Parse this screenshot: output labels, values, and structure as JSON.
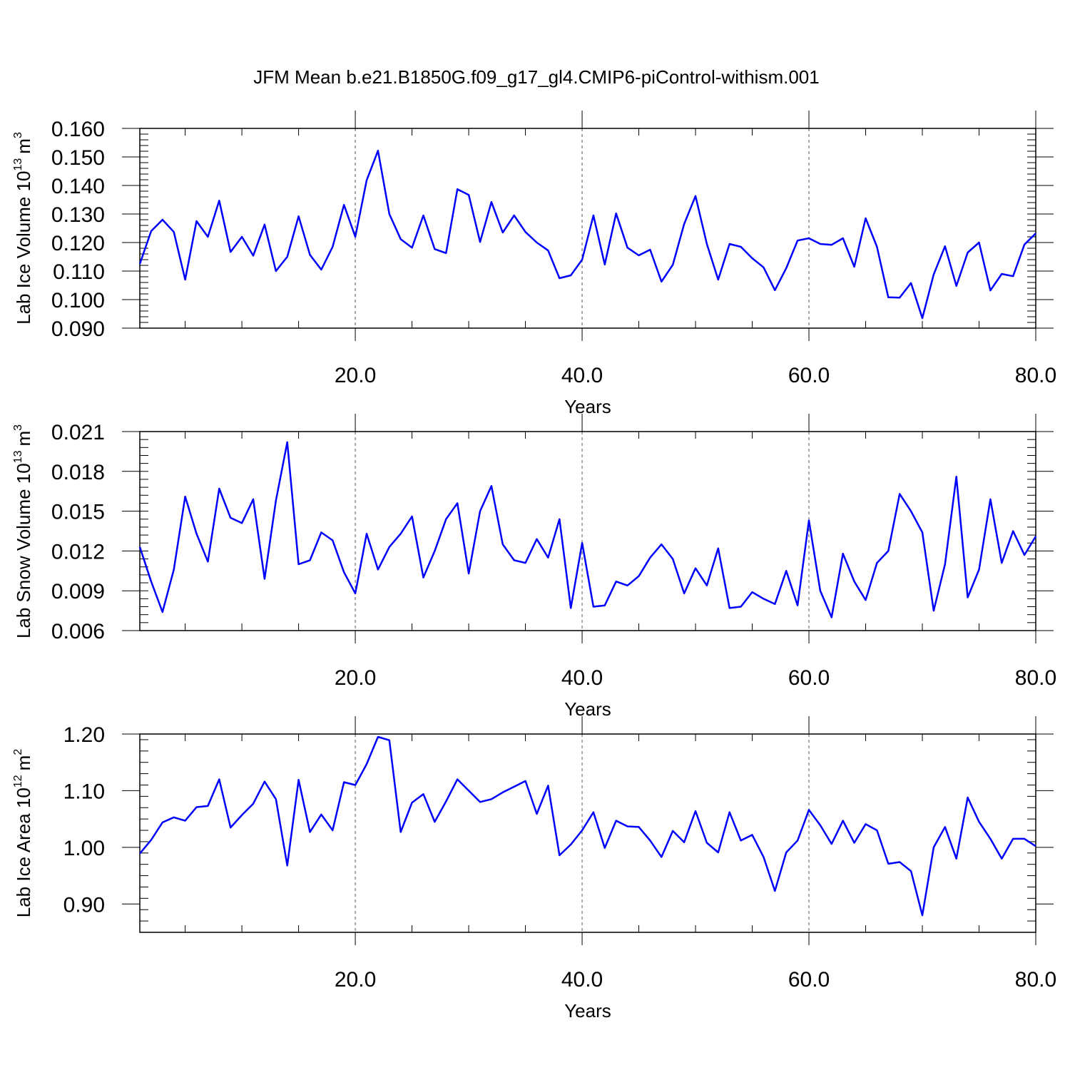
{
  "title": "JFM Mean b.e21.B1850G.f09_g17_gl4.CMIP6-piControl-withism.001",
  "colors": {
    "line": "#0000ff",
    "axes": "#000000",
    "grid": "#555555"
  },
  "chart_data": [
    {
      "type": "line",
      "xlabel": "Years",
      "ylabel_main": "Lab Ice Volume 10",
      "ylabel_exp": "13",
      "ylabel_unit": "m",
      "ylabel_unit_exp": "3",
      "xlim": [
        1,
        80
      ],
      "ylim": [
        0.09,
        0.16
      ],
      "yticks": [
        "0.160",
        "0.150",
        "0.140",
        "0.130",
        "0.120",
        "0.110",
        "0.100",
        "0.090"
      ],
      "ytick_values": [
        0.16,
        0.15,
        0.14,
        0.13,
        0.12,
        0.11,
        0.1,
        0.09
      ],
      "xticks": [
        "20.0",
        "40.0",
        "60.0",
        "80.0"
      ],
      "xtick_values": [
        20,
        40,
        60,
        80
      ],
      "grid": "vertical dashed at major x ticks",
      "series": [
        {
          "values": [
            0.1125,
            0.124,
            0.128,
            0.1237,
            0.107,
            0.1275,
            0.122,
            0.1347,
            0.1167,
            0.122,
            0.1154,
            0.1263,
            0.11,
            0.115,
            0.1292,
            0.1157,
            0.1105,
            0.1185,
            0.1332,
            0.122,
            0.1418,
            0.1522,
            0.13,
            0.1212,
            0.1182,
            0.1295,
            0.1177,
            0.1163,
            0.1387,
            0.1367,
            0.1202,
            0.1342,
            0.1235,
            0.1295,
            0.1237,
            0.12,
            0.1172,
            0.1075,
            0.1085,
            0.114,
            0.1295,
            0.1123,
            0.1302,
            0.1182,
            0.1155,
            0.1175,
            0.1063,
            0.1122,
            0.1265,
            0.1363,
            0.1195,
            0.107,
            0.1195,
            0.1185,
            0.1145,
            0.1113,
            0.1033,
            0.111,
            0.1207,
            0.1215,
            0.1195,
            0.1192,
            0.1215,
            0.1115,
            0.1285,
            0.1185,
            0.1008,
            0.1007,
            0.1058,
            0.0935,
            0.1088,
            0.1187,
            0.1048,
            0.1165,
            0.12,
            0.1032,
            0.109,
            0.1082,
            0.1193,
            0.1232
          ]
        }
      ]
    },
    {
      "type": "line",
      "xlabel": "Years",
      "ylabel_main": "Lab Snow Volume 10",
      "ylabel_exp": "13",
      "ylabel_unit": "m",
      "ylabel_unit_exp": "3",
      "xlim": [
        1,
        80
      ],
      "ylim": [
        0.006,
        0.021
      ],
      "yticks": [
        "0.021",
        "0.018",
        "0.015",
        "0.012",
        "0.009",
        "0.006"
      ],
      "ytick_values": [
        0.021,
        0.018,
        0.015,
        0.012,
        0.009,
        0.006
      ],
      "xticks": [
        "20.0",
        "40.0",
        "60.0",
        "80.0"
      ],
      "xtick_values": [
        20,
        40,
        60,
        80
      ],
      "grid": "vertical dashed at major x ticks",
      "series": [
        {
          "values": [
            0.0123,
            0.0097,
            0.0074,
            0.0106,
            0.0161,
            0.0133,
            0.0112,
            0.0167,
            0.0145,
            0.0141,
            0.0159,
            0.0099,
            0.0158,
            0.0202,
            0.011,
            0.0113,
            0.0134,
            0.0128,
            0.0104,
            0.0088,
            0.0133,
            0.0106,
            0.0123,
            0.0133,
            0.0146,
            0.01,
            0.012,
            0.0144,
            0.0156,
            0.0103,
            0.015,
            0.0169,
            0.0125,
            0.0113,
            0.0111,
            0.0129,
            0.0115,
            0.0144,
            0.0077,
            0.0126,
            0.0078,
            0.0079,
            0.0097,
            0.0094,
            0.0101,
            0.0115,
            0.0125,
            0.0114,
            0.0088,
            0.0107,
            0.0094,
            0.0122,
            0.0077,
            0.0078,
            0.0089,
            0.0084,
            0.008,
            0.0105,
            0.0079,
            0.0143,
            0.009,
            0.007,
            0.0118,
            0.0097,
            0.0083,
            0.0111,
            0.012,
            0.0163,
            0.015,
            0.0134,
            0.0075,
            0.011,
            0.0176,
            0.0085,
            0.0106,
            0.0159,
            0.0111,
            0.0135,
            0.0117,
            0.0131
          ]
        }
      ]
    },
    {
      "type": "line",
      "xlabel": "Years",
      "ylabel_main": "Lab Ice Area 10",
      "ylabel_exp": "12",
      "ylabel_unit": "m",
      "ylabel_unit_exp": "2",
      "xlim": [
        1,
        80
      ],
      "ylim": [
        0.85,
        1.2
      ],
      "yticks": [
        "1.20",
        "1.10",
        "1.00",
        "0.90"
      ],
      "ytick_values": [
        1.2,
        1.1,
        1.0,
        0.9
      ],
      "xticks": [
        "20.0",
        "40.0",
        "60.0",
        "80.0"
      ],
      "xtick_values": [
        20,
        40,
        60,
        80
      ],
      "grid": "vertical dashed at major x ticks",
      "series": [
        {
          "values": [
            0.989,
            1.013,
            1.044,
            1.053,
            1.047,
            1.071,
            1.073,
            1.12,
            1.035,
            1.057,
            1.077,
            1.116,
            1.085,
            0.968,
            1.119,
            1.027,
            1.058,
            1.03,
            1.115,
            1.11,
            1.147,
            1.195,
            1.189,
            1.027,
            1.079,
            1.094,
            1.045,
            1.081,
            1.12,
            1.1,
            1.08,
            1.085,
            1.097,
            1.107,
            1.117,
            1.059,
            1.109,
            0.986,
            1.005,
            1.03,
            1.062,
            0.999,
            1.047,
            1.037,
            1.036,
            1.012,
            0.983,
            1.029,
            1.009,
            1.064,
            1.008,
            0.991,
            1.062,
            1.012,
            1.022,
            0.983,
            0.923,
            0.991,
            1.012,
            1.066,
            1.039,
            1.006,
            1.047,
            1.008,
            1.041,
            1.03,
            0.971,
            0.974,
            0.958,
            0.88,
            1.0,
            1.036,
            0.98,
            1.088,
            1.045,
            1.015,
            0.98,
            1.015,
            1.015,
            1.002
          ]
        }
      ]
    }
  ]
}
